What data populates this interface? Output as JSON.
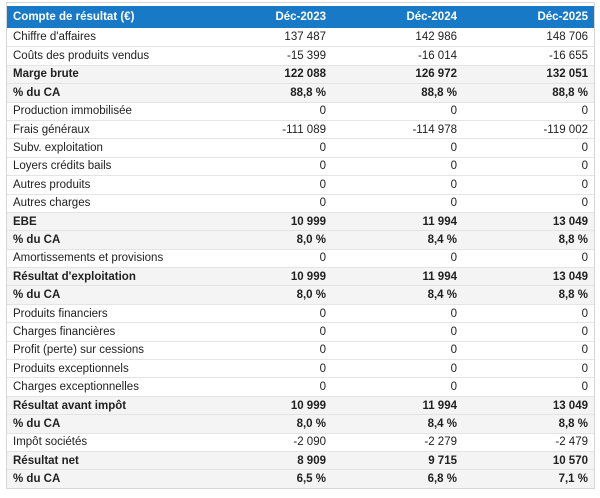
{
  "table": {
    "title": "Compte de résultat (€)",
    "columns": [
      "Déc-2023",
      "Déc-2024",
      "Déc-2025"
    ],
    "rows": [
      {
        "label": "Chiffre d'affaires",
        "values": [
          "137 487",
          "142 986",
          "148 706"
        ],
        "bold": false
      },
      {
        "label": "Coûts des produits vendus",
        "values": [
          "-15 399",
          "-16 014",
          "-16 655"
        ],
        "bold": false
      },
      {
        "label": "Marge brute",
        "values": [
          "122 088",
          "126 972",
          "132 051"
        ],
        "bold": true
      },
      {
        "label": "% du CA",
        "values": [
          "88,8 %",
          "88,8 %",
          "88,8 %"
        ],
        "bold": true
      },
      {
        "label": "Production immobilisée",
        "values": [
          "0",
          "0",
          "0"
        ],
        "bold": false
      },
      {
        "label": "Frais généraux",
        "values": [
          "-111 089",
          "-114 978",
          "-119 002"
        ],
        "bold": false
      },
      {
        "label": "Subv. exploitation",
        "values": [
          "0",
          "0",
          "0"
        ],
        "bold": false
      },
      {
        "label": "Loyers crédits bails",
        "values": [
          "0",
          "0",
          "0"
        ],
        "bold": false
      },
      {
        "label": "Autres produits",
        "values": [
          "0",
          "0",
          "0"
        ],
        "bold": false
      },
      {
        "label": "Autres charges",
        "values": [
          "0",
          "0",
          "0"
        ],
        "bold": false
      },
      {
        "label": "EBE",
        "values": [
          "10 999",
          "11 994",
          "13 049"
        ],
        "bold": true
      },
      {
        "label": "% du CA",
        "values": [
          "8,0 %",
          "8,4 %",
          "8,8 %"
        ],
        "bold": true
      },
      {
        "label": "Amortissements et provisions",
        "values": [
          "0",
          "0",
          "0"
        ],
        "bold": false
      },
      {
        "label": "Résultat d'exploitation",
        "values": [
          "10 999",
          "11 994",
          "13 049"
        ],
        "bold": true
      },
      {
        "label": "% du CA",
        "values": [
          "8,0 %",
          "8,4 %",
          "8,8 %"
        ],
        "bold": true
      },
      {
        "label": "Produits financiers",
        "values": [
          "0",
          "0",
          "0"
        ],
        "bold": false
      },
      {
        "label": "Charges financières",
        "values": [
          "0",
          "0",
          "0"
        ],
        "bold": false
      },
      {
        "label": "Profit (perte) sur cessions",
        "values": [
          "0",
          "0",
          "0"
        ],
        "bold": false
      },
      {
        "label": "Produits exceptionnels",
        "values": [
          "0",
          "0",
          "0"
        ],
        "bold": false
      },
      {
        "label": "Charges exceptionnelles",
        "values": [
          "0",
          "0",
          "0"
        ],
        "bold": false
      },
      {
        "label": "Résultat avant impôt",
        "values": [
          "10 999",
          "11 994",
          "13 049"
        ],
        "bold": true
      },
      {
        "label": "% du CA",
        "values": [
          "8,0 %",
          "8,4 %",
          "8,8 %"
        ],
        "bold": true
      },
      {
        "label": "Impôt sociétés",
        "values": [
          "-2 090",
          "-2 279",
          "-2 479"
        ],
        "bold": false
      },
      {
        "label": "Résultat net",
        "values": [
          "8 909",
          "9 715",
          "10 570"
        ],
        "bold": true
      },
      {
        "label": "% du CA",
        "values": [
          "6,5 %",
          "6,8 %",
          "7,1 %"
        ],
        "bold": true
      }
    ]
  },
  "colors": {
    "header_bg": "#1879c7",
    "header_text": "#ffffff",
    "summary_row_bg": "#f4f4f4",
    "row_border": "#e4e4e4",
    "table_border": "#d6d6d6"
  },
  "chart_data": {
    "type": "table",
    "title": "Compte de résultat (€)",
    "columns": [
      "Compte de résultat (€)",
      "Déc-2023",
      "Déc-2024",
      "Déc-2025"
    ],
    "rows": [
      {
        "label": "Chiffre d'affaires",
        "values": [
          137487,
          142986,
          148706
        ],
        "unit": "€",
        "emphasis": false
      },
      {
        "label": "Coûts des produits vendus",
        "values": [
          -15399,
          -16014,
          -16655
        ],
        "unit": "€",
        "emphasis": false
      },
      {
        "label": "Marge brute",
        "values": [
          122088,
          126972,
          132051
        ],
        "unit": "€",
        "emphasis": true
      },
      {
        "label": "% du CA",
        "values": [
          88.8,
          88.8,
          88.8
        ],
        "unit": "%",
        "emphasis": true
      },
      {
        "label": "Production immobilisée",
        "values": [
          0,
          0,
          0
        ],
        "unit": "€",
        "emphasis": false
      },
      {
        "label": "Frais généraux",
        "values": [
          -111089,
          -114978,
          -119002
        ],
        "unit": "€",
        "emphasis": false
      },
      {
        "label": "Subv. exploitation",
        "values": [
          0,
          0,
          0
        ],
        "unit": "€",
        "emphasis": false
      },
      {
        "label": "Loyers crédits bails",
        "values": [
          0,
          0,
          0
        ],
        "unit": "€",
        "emphasis": false
      },
      {
        "label": "Autres produits",
        "values": [
          0,
          0,
          0
        ],
        "unit": "€",
        "emphasis": false
      },
      {
        "label": "Autres charges",
        "values": [
          0,
          0,
          0
        ],
        "unit": "€",
        "emphasis": false
      },
      {
        "label": "EBE",
        "values": [
          10999,
          11994,
          13049
        ],
        "unit": "€",
        "emphasis": true
      },
      {
        "label": "% du CA",
        "values": [
          8.0,
          8.4,
          8.8
        ],
        "unit": "%",
        "emphasis": true
      },
      {
        "label": "Amortissements et provisions",
        "values": [
          0,
          0,
          0
        ],
        "unit": "€",
        "emphasis": false
      },
      {
        "label": "Résultat d'exploitation",
        "values": [
          10999,
          11994,
          13049
        ],
        "unit": "€",
        "emphasis": true
      },
      {
        "label": "% du CA",
        "values": [
          8.0,
          8.4,
          8.8
        ],
        "unit": "%",
        "emphasis": true
      },
      {
        "label": "Produits financiers",
        "values": [
          0,
          0,
          0
        ],
        "unit": "€",
        "emphasis": false
      },
      {
        "label": "Charges financières",
        "values": [
          0,
          0,
          0
        ],
        "unit": "€",
        "emphasis": false
      },
      {
        "label": "Profit (perte) sur cessions",
        "values": [
          0,
          0,
          0
        ],
        "unit": "€",
        "emphasis": false
      },
      {
        "label": "Produits exceptionnels",
        "values": [
          0,
          0,
          0
        ],
        "unit": "€",
        "emphasis": false
      },
      {
        "label": "Charges exceptionnelles",
        "values": [
          0,
          0,
          0
        ],
        "unit": "€",
        "emphasis": false
      },
      {
        "label": "Résultat avant impôt",
        "values": [
          10999,
          11994,
          13049
        ],
        "unit": "€",
        "emphasis": true
      },
      {
        "label": "% du CA",
        "values": [
          8.0,
          8.4,
          8.8
        ],
        "unit": "%",
        "emphasis": true
      },
      {
        "label": "Impôt sociétés",
        "values": [
          -2090,
          -2279,
          -2479
        ],
        "unit": "€",
        "emphasis": false
      },
      {
        "label": "Résultat net",
        "values": [
          8909,
          9715,
          10570
        ],
        "unit": "€",
        "emphasis": true
      },
      {
        "label": "% du CA",
        "values": [
          6.5,
          6.8,
          7.1
        ],
        "unit": "%",
        "emphasis": true
      }
    ]
  }
}
